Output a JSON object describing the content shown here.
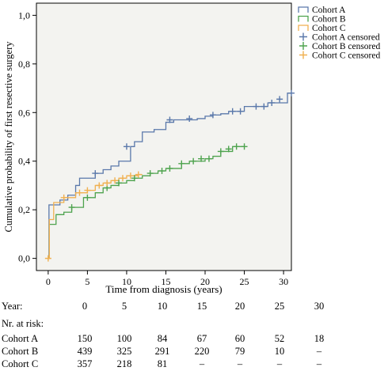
{
  "chart_data": {
    "type": "line",
    "step": true,
    "xlabel": "Time from diagnosis (years)",
    "ylabel": "Cumulative probability of first resective surgery",
    "xlim": [
      -1.5,
      31
    ],
    "ylim": [
      -0.05,
      1.05
    ],
    "x_ticks": [
      0,
      5,
      10,
      15,
      20,
      25,
      30
    ],
    "y_ticks": [
      0.0,
      0.2,
      0.4,
      0.6,
      0.8,
      1.0
    ],
    "y_tick_labels": [
      "0,0",
      "0,2",
      "0,4",
      "0,6",
      "0,8",
      "1,0"
    ],
    "grid": false,
    "background": "#f3f3f0",
    "legend_position": "top-right, outside plot",
    "series": [
      {
        "name": "Cohort A",
        "color": "#5a78aa",
        "x": [
          0,
          0.1,
          1.5,
          2.5,
          3.5,
          4,
          6,
          7,
          8,
          9,
          10.5,
          11,
          12,
          13.5,
          15,
          16,
          19,
          20,
          21,
          22,
          23,
          25,
          28,
          30.5,
          31
        ],
        "y": [
          0,
          0.22,
          0.24,
          0.26,
          0.3,
          0.33,
          0.35,
          0.365,
          0.38,
          0.4,
          0.46,
          0.48,
          0.52,
          0.53,
          0.56,
          0.57,
          0.575,
          0.585,
          0.59,
          0.595,
          0.605,
          0.625,
          0.64,
          0.68,
          0.68
        ]
      },
      {
        "name": "Cohort B",
        "color": "#4ea34e",
        "x": [
          0,
          0.15,
          1,
          2,
          3,
          4.5,
          6,
          7,
          8,
          9,
          10,
          11,
          12,
          13,
          14,
          15,
          17,
          18,
          20,
          21,
          22,
          23.5,
          25
        ],
        "y": [
          0,
          0.14,
          0.18,
          0.19,
          0.21,
          0.25,
          0.27,
          0.29,
          0.3,
          0.31,
          0.32,
          0.33,
          0.34,
          0.35,
          0.36,
          0.37,
          0.39,
          0.4,
          0.41,
          0.42,
          0.44,
          0.46,
          0.46
        ]
      },
      {
        "name": "Cohort C",
        "color": "#f0b050",
        "x": [
          0,
          0.15,
          0.7,
          2,
          3.5,
          5,
          6,
          7,
          8,
          9,
          10,
          11.5,
          12
        ],
        "y": [
          0,
          0.16,
          0.23,
          0.25,
          0.27,
          0.28,
          0.3,
          0.31,
          0.32,
          0.33,
          0.34,
          0.345,
          0.345
        ]
      }
    ],
    "censored": [
      {
        "name": "Cohort A censored",
        "color": "#5a78aa",
        "x": [
          6,
          10,
          15.5,
          18,
          21,
          23.5,
          24.5,
          26.5,
          27.5,
          28.5,
          29.5,
          31
        ],
        "y": [
          0.35,
          0.46,
          0.57,
          0.575,
          0.59,
          0.605,
          0.605,
          0.625,
          0.625,
          0.64,
          0.655,
          0.68
        ]
      },
      {
        "name": "Cohort B censored",
        "color": "#4ea34e",
        "x": [
          3,
          5,
          7.5,
          9,
          11,
          13,
          14.5,
          15.5,
          17,
          18.5,
          19.5,
          20.5,
          22,
          23,
          24,
          25
        ],
        "y": [
          0.21,
          0.25,
          0.29,
          0.31,
          0.33,
          0.35,
          0.36,
          0.37,
          0.39,
          0.4,
          0.41,
          0.41,
          0.44,
          0.45,
          0.46,
          0.46
        ]
      },
      {
        "name": "Cohort C censored",
        "color": "#f0b050",
        "x": [
          0,
          2,
          4,
          5,
          6.5,
          7.5,
          8.5,
          9.5,
          10.5,
          11.5
        ],
        "y": [
          0,
          0.25,
          0.27,
          0.28,
          0.3,
          0.31,
          0.32,
          0.33,
          0.34,
          0.345
        ]
      }
    ]
  },
  "risk_table": {
    "year_label": "Year:",
    "years": [
      "0",
      "5",
      "10",
      "15",
      "20",
      "25",
      "30"
    ],
    "heading": "Nr. at risk:",
    "rows": [
      {
        "name": "Cohort A",
        "values": [
          "150",
          "100",
          "84",
          "67",
          "60",
          "52",
          "18"
        ]
      },
      {
        "name": "Cohort B",
        "values": [
          "439",
          "325",
          "291",
          "220",
          "79",
          "10",
          "–"
        ]
      },
      {
        "name": "Cohort C",
        "values": [
          "357",
          "218",
          "81",
          "–",
          "–",
          "–",
          "–"
        ]
      }
    ]
  }
}
